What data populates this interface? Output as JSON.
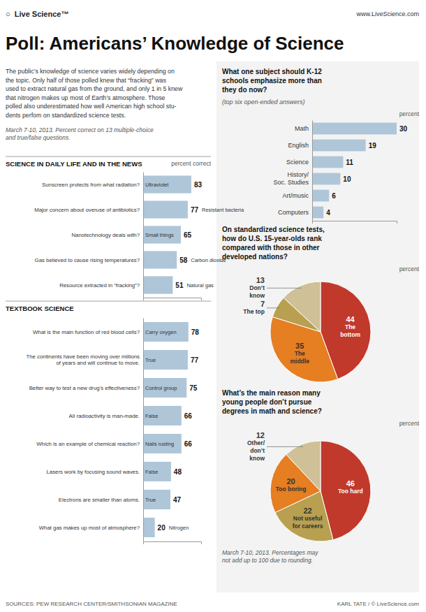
{
  "title": "Poll: Americans’ Knowledge of Science",
  "brand": "○  Live Science™",
  "website": "www.LiveScience.com",
  "intro_text": "The public’s knowledge of science varies widely depending on\nthe topic. Only half of those polled knew that “fracking” was\nused to extract natural gas from the ground, and only 1 in 5 knew\nthat nitrogen makes up most of Earth’s atmosphere. Those\npolled also underestimated how well American high school stu-\ndents perfom on standardized science tests.",
  "date_note": "March 7-10, 2013. Percent correct on 13 multiple-choice\nand true/false questions.",
  "note": "March 7-10, 2013. Percentages may\nnot add up to 100 due to rounding.",
  "sources": "SOURCES: PEW RESEARCH CENTER/SMITHSONIAN MAGAZINE",
  "credit": "KARL TATE / © LiveScience.com",
  "chart_data": [
    {
      "type": "bar",
      "orientation": "horizontal",
      "title": "SCIENCE IN DAILY LIFE AND IN THE NEWS",
      "xlabel": "percent correct",
      "categories": [
        "Sunscreen protects from what radiation?",
        "Major concern about overuse of antibiotics?",
        "Nanotechnology deals with?",
        "Gas believed to cause rising temperatures?",
        "Resource extracted in “fracking”?"
      ],
      "values": [
        83,
        77,
        65,
        58,
        51
      ],
      "annotations": [
        "Ultraviolet",
        "Resistant bacteria",
        "Small things",
        "Carbon dioxide",
        "Natural gas"
      ],
      "color": "#aec6d8",
      "xlim": [
        0,
        100
      ],
      "data_labels": true,
      "tick_labels": "y"
    },
    {
      "type": "bar",
      "orientation": "horizontal",
      "title": "TEXTBOOK SCIENCE",
      "categories": [
        "What is the main function of red blood cells?",
        "The continents have been moving over millions\nof years and will continue to move.",
        "Better way to test a new drug’s effectiveness?",
        "All radioactivity is man-made.",
        "Which is an example of chemical reaction?",
        "Lasers work by focusing sound waves.",
        "Electrons are smaller than atoms.",
        "What gas makes up most of atmosphere?"
      ],
      "values": [
        78,
        77,
        75,
        66,
        66,
        48,
        47,
        20
      ],
      "annotations": [
        "Carry oxygen",
        "True",
        "Control group",
        "False",
        "Nails rusting",
        "False",
        "True",
        "Nitrogen"
      ],
      "color": "#aec6d8",
      "xlim": [
        0,
        100
      ],
      "data_labels": true,
      "tick_labels": "y"
    },
    {
      "type": "bar",
      "orientation": "horizontal",
      "title": "What one subject should K-12\nschools emphasize more than\nthey do now?",
      "subtitle": "(top six open-ended answers)",
      "xlabel": "percent",
      "categories": [
        "Math",
        "English",
        "Science",
        "History/\nSoc. Studies",
        "Art/music",
        "Computers"
      ],
      "values": [
        30,
        19,
        11,
        10,
        6,
        4
      ],
      "color": "#aec6d8",
      "xlim": [
        0,
        30
      ],
      "data_labels": true,
      "tick_labels": "y"
    },
    {
      "type": "pie",
      "title": "On standardized science tests,\nhow do U.S. 15-year-olds rank\ncompared with those in other\ndeveloped nations?",
      "subtitle": "percent",
      "categories": [
        "The\nbottom",
        "The\nmiddle",
        "The top",
        "Don’t\nknow"
      ],
      "values": [
        44,
        35,
        7,
        13
      ],
      "colors": [
        "#c0392b",
        "#e67e22",
        "#b8a050",
        "#cfc098"
      ],
      "data_labels": true
    },
    {
      "type": "pie",
      "title": "What’s the main reason many\nyoung people don’t pursue\ndegrees in math and science?",
      "subtitle": "percent",
      "categories": [
        "Too hard",
        "Not useful\nfor careers",
        "Too boring",
        "Other/\ndon’t\nknow"
      ],
      "values": [
        46,
        22,
        20,
        12
      ],
      "colors": [
        "#c0392b",
        "#b8a050",
        "#e67e22",
        "#cfc098"
      ],
      "data_labels": true
    }
  ]
}
